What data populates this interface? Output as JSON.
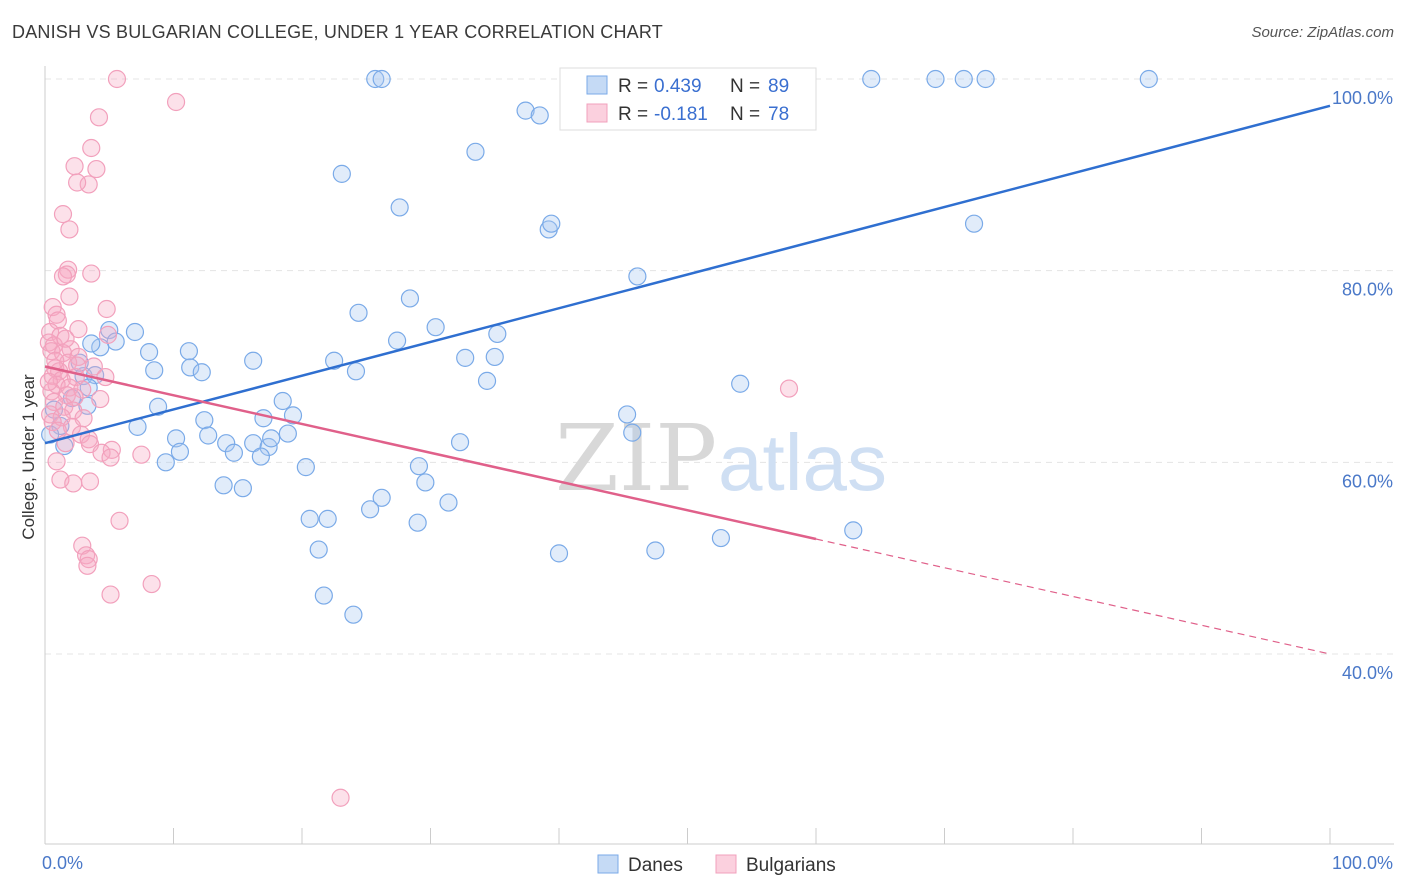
{
  "title": "DANISH VS BULGARIAN COLLEGE, UNDER 1 YEAR CORRELATION CHART",
  "source": "Source: ZipAtlas.com",
  "watermark": {
    "zip": "ZIP",
    "atlas": "atlas"
  },
  "legend_top": {
    "rows": [
      {
        "r_label": "R = ",
        "r_value": "0.439",
        "n_label": "N = ",
        "n_value": "89",
        "color": "#7aaae8"
      },
      {
        "r_label": "R = ",
        "r_value": "-0.181",
        "n_label": "N = ",
        "n_value": "78",
        "color": "#f2a0bc"
      }
    ]
  },
  "chart_data": {
    "type": "scatter",
    "title": "DANISH VS BULGARIAN COLLEGE, UNDER 1 YEAR CORRELATION CHART",
    "xlabel": "",
    "ylabel": "College, Under 1 year",
    "xlim": [
      0,
      100
    ],
    "ylim": [
      20,
      102
    ],
    "x_tick_labels": [
      "0.0%",
      "100.0%"
    ],
    "y_ticks": [
      40,
      60,
      80,
      100
    ],
    "y_tick_labels": [
      "40.0%",
      "60.0%",
      "80.0%",
      "100.0%"
    ],
    "grid": true,
    "legend_position": "bottom",
    "series": [
      {
        "name": "Danes",
        "color": "#7aaae8",
        "line_color": "#2f6fd0",
        "trend": {
          "x": [
            0,
            100
          ],
          "y": [
            62.0,
            97.2
          ]
        },
        "points": [
          [
            25.7,
            100
          ],
          [
            26.2,
            100
          ],
          [
            44.3,
            100
          ],
          [
            57.9,
            100
          ],
          [
            58.2,
            100
          ],
          [
            64.3,
            100
          ],
          [
            69.3,
            100
          ],
          [
            71.5,
            100
          ],
          [
            73.2,
            100
          ],
          [
            85.9,
            100
          ],
          [
            37.4,
            96.7
          ],
          [
            38.5,
            96.2
          ],
          [
            33.5,
            92.4
          ],
          [
            23.1,
            90.1
          ],
          [
            27.6,
            86.6
          ],
          [
            39.2,
            84.3
          ],
          [
            39.4,
            84.9
          ],
          [
            72.3,
            84.9
          ],
          [
            46.1,
            79.4
          ],
          [
            28.4,
            77.1
          ],
          [
            24.4,
            75.6
          ],
          [
            30.4,
            74.1
          ],
          [
            5.0,
            73.8
          ],
          [
            7.0,
            73.6
          ],
          [
            35.2,
            73.4
          ],
          [
            27.4,
            72.7
          ],
          [
            5.5,
            72.6
          ],
          [
            4.3,
            72.0
          ],
          [
            8.1,
            71.5
          ],
          [
            11.2,
            71.6
          ],
          [
            32.7,
            70.9
          ],
          [
            35.0,
            71.0
          ],
          [
            16.2,
            70.6
          ],
          [
            22.5,
            70.6
          ],
          [
            8.5,
            69.6
          ],
          [
            11.3,
            69.9
          ],
          [
            12.2,
            69.4
          ],
          [
            24.2,
            69.5
          ],
          [
            34.4,
            68.5
          ],
          [
            3.0,
            69.0
          ],
          [
            3.9,
            69.1
          ],
          [
            54.1,
            68.2
          ],
          [
            3.4,
            67.8
          ],
          [
            18.5,
            66.4
          ],
          [
            3.3,
            65.9
          ],
          [
            8.8,
            65.8
          ],
          [
            19.3,
            64.9
          ],
          [
            17.0,
            64.6
          ],
          [
            45.3,
            65.0
          ],
          [
            12.4,
            64.4
          ],
          [
            7.2,
            63.7
          ],
          [
            12.7,
            62.8
          ],
          [
            16.2,
            62.0
          ],
          [
            10.2,
            62.5
          ],
          [
            14.1,
            62.0
          ],
          [
            17.4,
            61.6
          ],
          [
            32.3,
            62.1
          ],
          [
            18.9,
            63.0
          ],
          [
            17.6,
            62.5
          ],
          [
            45.7,
            63.1
          ],
          [
            10.5,
            61.1
          ],
          [
            14.7,
            61.0
          ],
          [
            16.8,
            60.6
          ],
          [
            9.4,
            60.0
          ],
          [
            20.3,
            59.5
          ],
          [
            29.1,
            59.6
          ],
          [
            29.6,
            57.9
          ],
          [
            13.9,
            57.6
          ],
          [
            15.4,
            57.3
          ],
          [
            26.2,
            56.3
          ],
          [
            31.4,
            55.8
          ],
          [
            25.3,
            55.1
          ],
          [
            20.6,
            54.1
          ],
          [
            22.0,
            54.1
          ],
          [
            29.0,
            53.7
          ],
          [
            62.9,
            52.9
          ],
          [
            52.6,
            52.1
          ],
          [
            21.3,
            50.9
          ],
          [
            40.0,
            50.5
          ],
          [
            47.5,
            50.8
          ],
          [
            21.7,
            46.1
          ],
          [
            24.0,
            44.1
          ],
          [
            0.7,
            65.5
          ],
          [
            1.2,
            63.8
          ],
          [
            2.1,
            66.7
          ],
          [
            0.4,
            62.9
          ],
          [
            1.5,
            61.7
          ],
          [
            2.7,
            70.4
          ],
          [
            3.6,
            72.4
          ]
        ]
      },
      {
        "name": "Bulgarians",
        "color": "#f2a0bc",
        "line_color": "#e0608a",
        "trend": {
          "x": [
            0,
            60
          ],
          "y": [
            70.0,
            52.0
          ]
        },
        "trend_dashed": {
          "x": [
            60,
            100
          ],
          "y": [
            52.0,
            40.0
          ]
        },
        "points": [
          [
            5.6,
            100
          ],
          [
            10.2,
            97.6
          ],
          [
            4.2,
            96.0
          ],
          [
            3.6,
            92.8
          ],
          [
            2.3,
            90.9
          ],
          [
            4.0,
            90.6
          ],
          [
            3.4,
            89.0
          ],
          [
            2.5,
            89.2
          ],
          [
            1.4,
            85.9
          ],
          [
            1.9,
            84.3
          ],
          [
            1.8,
            80.1
          ],
          [
            1.7,
            79.6
          ],
          [
            3.6,
            79.7
          ],
          [
            1.4,
            79.4
          ],
          [
            1.9,
            77.3
          ],
          [
            0.6,
            76.2
          ],
          [
            4.8,
            76.0
          ],
          [
            0.9,
            75.4
          ],
          [
            1.0,
            74.8
          ],
          [
            2.6,
            73.9
          ],
          [
            0.4,
            73.6
          ],
          [
            1.2,
            73.2
          ],
          [
            4.9,
            73.3
          ],
          [
            0.3,
            72.5
          ],
          [
            0.7,
            72.2
          ],
          [
            2.0,
            71.8
          ],
          [
            0.5,
            71.6
          ],
          [
            1.4,
            71.4
          ],
          [
            2.6,
            71.0
          ],
          [
            1.8,
            70.4
          ],
          [
            3.8,
            70.0
          ],
          [
            0.8,
            69.8
          ],
          [
            1.1,
            69.5
          ],
          [
            0.6,
            69.0
          ],
          [
            2.4,
            68.9
          ],
          [
            1.3,
            68.6
          ],
          [
            4.7,
            68.9
          ],
          [
            0.9,
            68.1
          ],
          [
            1.9,
            67.8
          ],
          [
            2.9,
            67.6
          ],
          [
            0.5,
            67.4
          ],
          [
            1.7,
            67.0
          ],
          [
            2.3,
            66.8
          ],
          [
            4.3,
            66.6
          ],
          [
            0.7,
            66.3
          ],
          [
            1.5,
            65.8
          ],
          [
            2.2,
            65.4
          ],
          [
            0.4,
            65.0
          ],
          [
            1.3,
            64.7
          ],
          [
            3.0,
            64.6
          ],
          [
            0.6,
            64.2
          ],
          [
            2.1,
            63.7
          ],
          [
            1.0,
            63.3
          ],
          [
            2.8,
            62.9
          ],
          [
            3.4,
            62.4
          ],
          [
            1.6,
            62.0
          ],
          [
            3.5,
            61.9
          ],
          [
            5.2,
            61.3
          ],
          [
            4.4,
            61.0
          ],
          [
            7.5,
            60.8
          ],
          [
            5.1,
            60.5
          ],
          [
            0.9,
            60.1
          ],
          [
            1.2,
            58.2
          ],
          [
            3.5,
            58.0
          ],
          [
            2.2,
            57.8
          ],
          [
            5.8,
            53.9
          ],
          [
            2.9,
            51.3
          ],
          [
            3.2,
            50.3
          ],
          [
            3.4,
            49.9
          ],
          [
            3.3,
            49.2
          ],
          [
            8.3,
            47.3
          ],
          [
            5.1,
            46.2
          ],
          [
            57.9,
            67.7
          ],
          [
            23.0,
            25.0
          ],
          [
            0.8,
            70.6
          ],
          [
            1.6,
            72.9
          ],
          [
            2.5,
            70.1
          ],
          [
            0.3,
            68.4
          ]
        ]
      }
    ]
  }
}
